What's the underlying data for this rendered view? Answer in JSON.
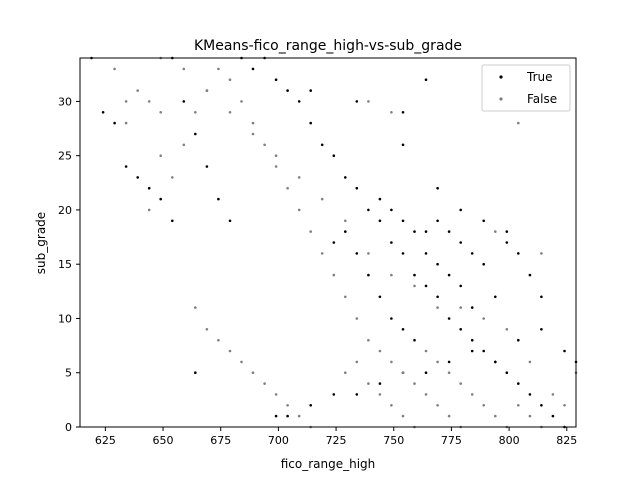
{
  "chart_data": {
    "type": "scatter",
    "title": "KMeans-fico_range_high-vs-sub_grade",
    "xlabel": "fico_range_high",
    "ylabel": "sub_grade",
    "xlim": [
      614,
      829
    ],
    "ylim": [
      0,
      34
    ],
    "x_ticks": [
      625,
      650,
      675,
      700,
      725,
      750,
      775,
      800,
      825
    ],
    "y_ticks": [
      0,
      5,
      10,
      15,
      20,
      25,
      30
    ],
    "grid": false,
    "legend_position": "top-right",
    "series": [
      {
        "name": "True",
        "color": "#000000",
        "marker": "dot",
        "points": [
          [
            619,
            34
          ],
          [
            624,
            29
          ],
          [
            629,
            28
          ],
          [
            634,
            24
          ],
          [
            639,
            23
          ],
          [
            644,
            22
          ],
          [
            649,
            21
          ],
          [
            654,
            19
          ],
          [
            654,
            34
          ],
          [
            659,
            30
          ],
          [
            664,
            27
          ],
          [
            669,
            24
          ],
          [
            674,
            21
          ],
          [
            679,
            19
          ],
          [
            684,
            34
          ],
          [
            689,
            33
          ],
          [
            694,
            34
          ],
          [
            699,
            32
          ],
          [
            704,
            31
          ],
          [
            709,
            30
          ],
          [
            714,
            28
          ],
          [
            719,
            26
          ],
          [
            724,
            25
          ],
          [
            729,
            23
          ],
          [
            734,
            22
          ],
          [
            739,
            20
          ],
          [
            744,
            19
          ],
          [
            749,
            17
          ],
          [
            754,
            16
          ],
          [
            759,
            14
          ],
          [
            764,
            13
          ],
          [
            769,
            12
          ],
          [
            774,
            10
          ],
          [
            779,
            9
          ],
          [
            784,
            8
          ],
          [
            789,
            7
          ],
          [
            794,
            6
          ],
          [
            799,
            5
          ],
          [
            804,
            4
          ],
          [
            809,
            3
          ],
          [
            814,
            2
          ],
          [
            819,
            1
          ],
          [
            824,
            0
          ],
          [
            714,
            31
          ],
          [
            734,
            30
          ],
          [
            754,
            29
          ],
          [
            764,
            32
          ],
          [
            754,
            26
          ],
          [
            769,
            22
          ],
          [
            779,
            20
          ],
          [
            789,
            19
          ],
          [
            799,
            18
          ],
          [
            809,
            14
          ],
          [
            814,
            12
          ],
          [
            824,
            7
          ],
          [
            829,
            6
          ],
          [
            664,
            5
          ],
          [
            699,
            1
          ],
          [
            704,
            1
          ],
          [
            714,
            2
          ],
          [
            724,
            3
          ],
          [
            734,
            3
          ],
          [
            744,
            4
          ],
          [
            754,
            5
          ],
          [
            764,
            5
          ],
          [
            774,
            6
          ],
          [
            784,
            7
          ],
          [
            794,
            6
          ],
          [
            804,
            8
          ],
          [
            814,
            9
          ],
          [
            784,
            11
          ],
          [
            794,
            12
          ],
          [
            764,
            18
          ],
          [
            769,
            19
          ],
          [
            774,
            18
          ],
          [
            779,
            17
          ],
          [
            784,
            16
          ],
          [
            789,
            15
          ],
          [
            804,
            16
          ],
          [
            799,
            17
          ],
          [
            744,
            21
          ],
          [
            749,
            20
          ],
          [
            754,
            19
          ],
          [
            759,
            18
          ],
          [
            764,
            16
          ],
          [
            769,
            15
          ],
          [
            774,
            14
          ],
          [
            779,
            13
          ],
          [
            724,
            17
          ],
          [
            729,
            18
          ],
          [
            734,
            16
          ],
          [
            739,
            14
          ],
          [
            744,
            12
          ],
          [
            749,
            10
          ],
          [
            754,
            9
          ],
          [
            759,
            8
          ]
        ]
      },
      {
        "name": "False",
        "color": "#808080",
        "marker": "dot",
        "points": [
          [
            629,
            33
          ],
          [
            634,
            30
          ],
          [
            634,
            28
          ],
          [
            639,
            31
          ],
          [
            644,
            30
          ],
          [
            649,
            29
          ],
          [
            649,
            25
          ],
          [
            644,
            20
          ],
          [
            654,
            23
          ],
          [
            659,
            26
          ],
          [
            664,
            29
          ],
          [
            669,
            31
          ],
          [
            674,
            33
          ],
          [
            679,
            32
          ],
          [
            684,
            30
          ],
          [
            689,
            28
          ],
          [
            694,
            26
          ],
          [
            699,
            24
          ],
          [
            704,
            22
          ],
          [
            709,
            20
          ],
          [
            714,
            18
          ],
          [
            719,
            16
          ],
          [
            724,
            14
          ],
          [
            729,
            12
          ],
          [
            734,
            10
          ],
          [
            739,
            8
          ],
          [
            744,
            7
          ],
          [
            749,
            6
          ],
          [
            754,
            5
          ],
          [
            759,
            4
          ],
          [
            764,
            3
          ],
          [
            769,
            2
          ],
          [
            774,
            1
          ],
          [
            779,
            0
          ],
          [
            739,
            30
          ],
          [
            749,
            29
          ],
          [
            804,
            28
          ],
          [
            794,
            18
          ],
          [
            814,
            16
          ],
          [
            664,
            11
          ],
          [
            669,
            9
          ],
          [
            674,
            8
          ],
          [
            679,
            7
          ],
          [
            684,
            6
          ],
          [
            689,
            5
          ],
          [
            694,
            4
          ],
          [
            699,
            3
          ],
          [
            704,
            2
          ],
          [
            709,
            1
          ],
          [
            714,
            0
          ],
          [
            729,
            5
          ],
          [
            734,
            6
          ],
          [
            739,
            4
          ],
          [
            744,
            3
          ],
          [
            749,
            2
          ],
          [
            754,
            1
          ],
          [
            759,
            0
          ],
          [
            764,
            7
          ],
          [
            769,
            6
          ],
          [
            774,
            5
          ],
          [
            779,
            4
          ],
          [
            784,
            3
          ],
          [
            789,
            2
          ],
          [
            794,
            1
          ],
          [
            799,
            0
          ],
          [
            804,
            2
          ],
          [
            809,
            1
          ],
          [
            814,
            0
          ],
          [
            819,
            3
          ],
          [
            824,
            2
          ],
          [
            829,
            5
          ],
          [
            809,
            6
          ],
          [
            799,
            9
          ],
          [
            789,
            10
          ],
          [
            779,
            11
          ],
          [
            769,
            11
          ],
          [
            759,
            13
          ],
          [
            749,
            14
          ],
          [
            739,
            16
          ],
          [
            729,
            19
          ],
          [
            719,
            21
          ],
          [
            709,
            23
          ],
          [
            699,
            25
          ],
          [
            689,
            27
          ],
          [
            679,
            29
          ],
          [
            669,
            31
          ],
          [
            659,
            33
          ],
          [
            649,
            34
          ]
        ]
      }
    ]
  }
}
